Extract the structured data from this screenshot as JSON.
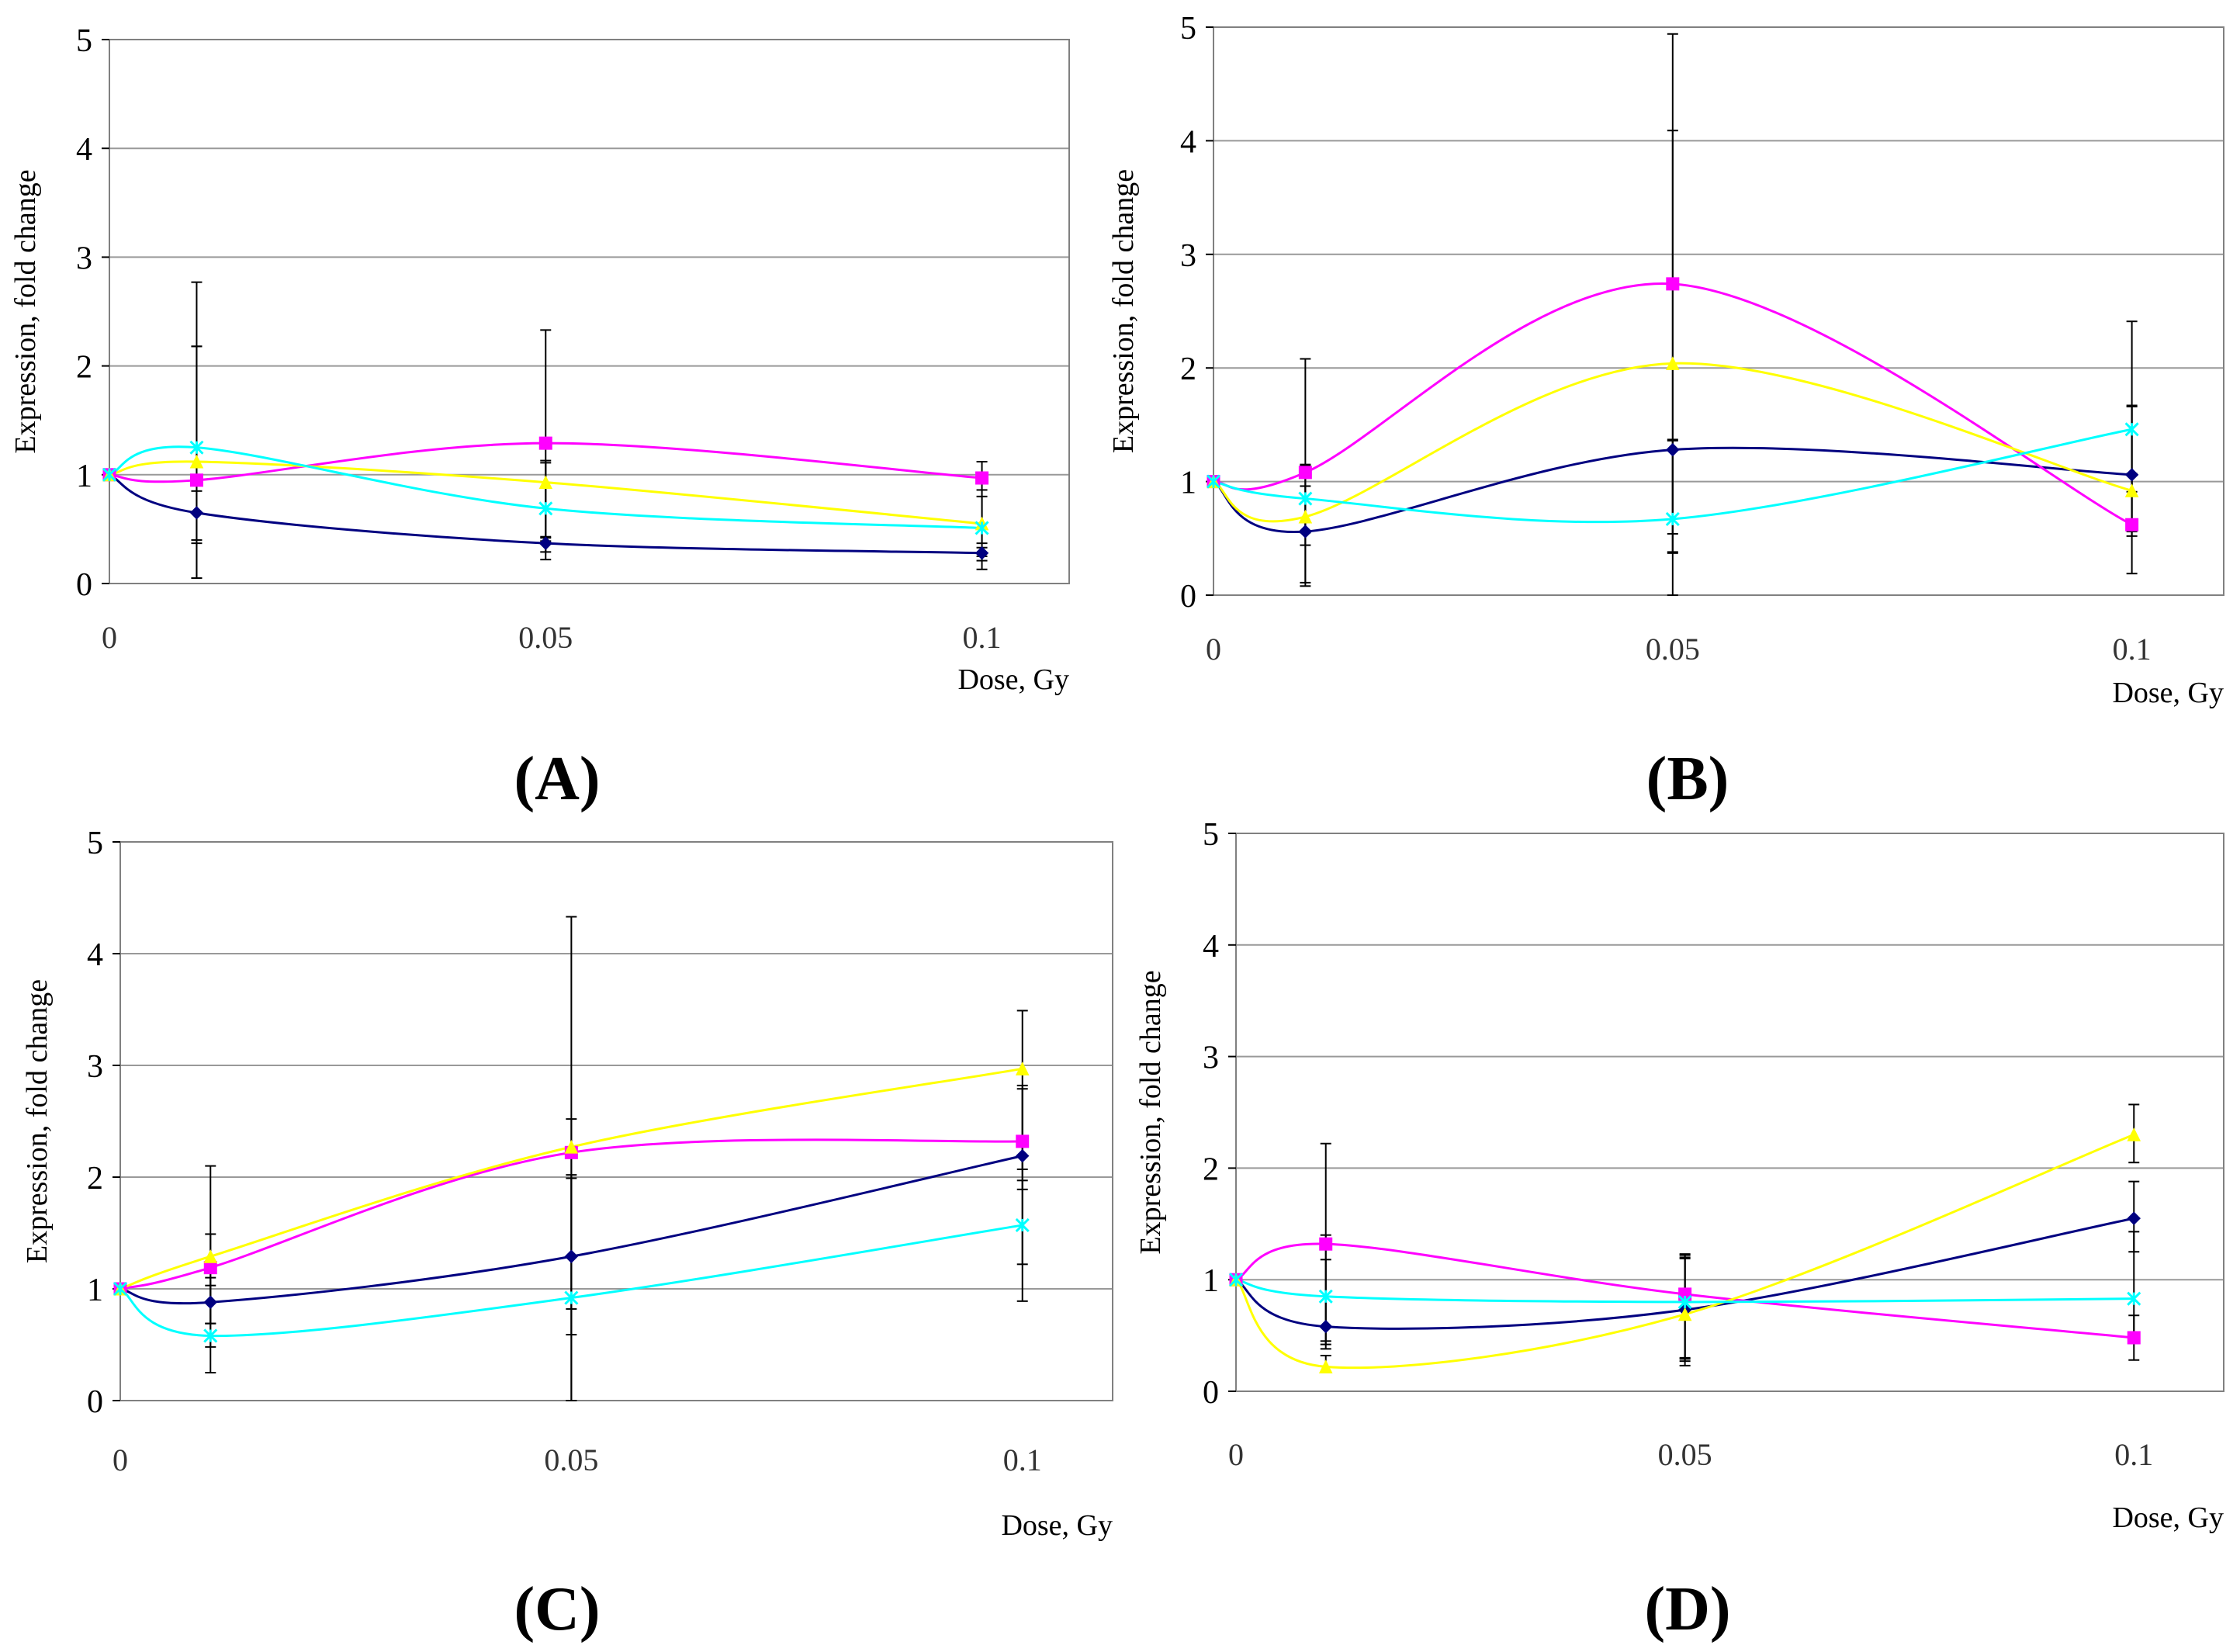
{
  "colors": {
    "navy": "#000080",
    "magenta": "#ff00ff",
    "yellow": "#ffff00",
    "cyan": "#00ffff",
    "grid": "#999999",
    "frame": "#808080",
    "error": "#000000"
  },
  "chart_data": [
    {
      "panel": "(A)",
      "type": "line",
      "x": [
        0,
        0.01,
        0.05,
        0.1
      ],
      "x_tick_labels": [
        "0",
        "0.05",
        "0.1"
      ],
      "x_tick_values": [
        0,
        0.05,
        0.1
      ],
      "xlabel": "Dose, Gy",
      "ylabel": "Expression, fold change",
      "y_tick_labels": [
        "0",
        "1",
        "2",
        "3",
        "4",
        "5"
      ],
      "xlim": [
        0,
        0.11
      ],
      "ylim": [
        0,
        5
      ],
      "grid": true,
      "series": [
        {
          "color": "navy",
          "marker": "diamond",
          "values": [
            1,
            0.65,
            0.37,
            0.28
          ],
          "err_low": [
            0,
            0.6,
            0.15,
            0.15
          ],
          "err_high": [
            0,
            0.2,
            0.05,
            0.05
          ]
        },
        {
          "color": "magenta",
          "marker": "square",
          "values": [
            1,
            0.95,
            1.29,
            0.97
          ],
          "err_low": [
            0,
            0.9,
            0.9,
            0.6
          ],
          "err_high": [
            0,
            1.82,
            1.04,
            0.15
          ]
        },
        {
          "color": "yellow",
          "marker": "triangle",
          "values": [
            1,
            1.12,
            0.93,
            0.55
          ],
          "err_low": [
            0,
            0.75,
            0.5,
            0.3
          ],
          "err_high": [
            0,
            1.06,
            0.2,
            0.25
          ]
        },
        {
          "color": "cyan",
          "marker": "star",
          "values": [
            1,
            1.25,
            0.69,
            0.51
          ],
          "err_low": [
            0,
            0.85,
            0.4,
            0.3
          ],
          "err_high": [
            0,
            0.93,
            0.42,
            0.35
          ]
        }
      ]
    },
    {
      "panel": "(B)",
      "type": "line",
      "x": [
        0,
        0.01,
        0.05,
        0.1
      ],
      "x_tick_labels": [
        "0",
        "0.05",
        "0.1"
      ],
      "x_tick_values": [
        0,
        0.05,
        0.1
      ],
      "xlabel": "Dose, Gy",
      "ylabel": "Expression, fold change",
      "y_tick_labels": [
        "0",
        "1",
        "2",
        "3",
        "4",
        "5"
      ],
      "xlim": [
        0,
        0.11
      ],
      "ylim": [
        0,
        5
      ],
      "grid": true,
      "series": [
        {
          "color": "navy",
          "marker": "diamond",
          "values": [
            1,
            0.56,
            1.28,
            1.06
          ],
          "err_low": [
            0,
            0.45,
            0.9,
            0.5
          ],
          "err_high": [
            0,
            0.4,
            0.08,
            0.6
          ]
        },
        {
          "color": "magenta",
          "marker": "square",
          "values": [
            1,
            1.08,
            2.74,
            0.62
          ],
          "err_low": [
            0,
            1.0,
            2.74,
            0.43
          ],
          "err_high": [
            0,
            1.0,
            2.2,
            0.45
          ]
        },
        {
          "color": "yellow",
          "marker": "triangle",
          "values": [
            1,
            0.69,
            2.04,
            0.92
          ],
          "err_low": [
            0,
            0.25,
            1.5,
            0.4
          ],
          "err_high": [
            0,
            0.45,
            2.05,
            0.75
          ]
        },
        {
          "color": "cyan",
          "marker": "star",
          "values": [
            1,
            0.85,
            0.67,
            1.46
          ],
          "err_low": [
            0,
            0.3,
            0.3,
            0.55
          ],
          "err_high": [
            0,
            0.3,
            0.7,
            0.95
          ]
        }
      ]
    },
    {
      "panel": "(C)",
      "type": "line",
      "x": [
        0,
        0.01,
        0.05,
        0.1
      ],
      "x_tick_labels": [
        "0",
        "0.05",
        "0.1"
      ],
      "x_tick_values": [
        0,
        0.05,
        0.1
      ],
      "xlabel": "Dose, Gy",
      "ylabel": "Expression, fold change",
      "y_tick_labels": [
        "0",
        "1",
        "2",
        "3",
        "4",
        "5"
      ],
      "xlim": [
        0,
        0.11
      ],
      "ylim": [
        0,
        5
      ],
      "grid": true,
      "series": [
        {
          "color": "navy",
          "marker": "diamond",
          "values": [
            1,
            0.88,
            1.29,
            2.19
          ],
          "err_low": [
            0,
            0.4,
            0.7,
            0.3
          ],
          "err_high": [
            0,
            0.22,
            0.7,
            0.6
          ]
        },
        {
          "color": "magenta",
          "marker": "square",
          "values": [
            1,
            1.19,
            2.22,
            2.32
          ],
          "err_low": [
            0,
            0.5,
            1.4,
            1.1
          ],
          "err_high": [
            0,
            0.3,
            0.3,
            0.5
          ]
        },
        {
          "color": "yellow",
          "marker": "triangle",
          "values": [
            1,
            1.29,
            2.27,
            2.97
          ],
          "err_low": [
            0,
            0.6,
            2.27,
            0.9
          ],
          "err_high": [
            0,
            0.81,
            2.06,
            0.52
          ]
        },
        {
          "color": "cyan",
          "marker": "star",
          "values": [
            1,
            0.58,
            0.92,
            1.57
          ],
          "err_low": [
            0,
            0.33,
            0.92,
            0.68
          ],
          "err_high": [
            0,
            0.45,
            1.1,
            0.4
          ]
        }
      ]
    },
    {
      "panel": "(D)",
      "type": "line",
      "x": [
        0,
        0.01,
        0.05,
        0.1
      ],
      "x_tick_labels": [
        "0",
        "0.05",
        "0.1"
      ],
      "x_tick_values": [
        0,
        0.05,
        0.1
      ],
      "xlabel": "Dose, Gy",
      "ylabel": "Expression, fold change",
      "y_tick_labels": [
        "0",
        "1",
        "2",
        "3",
        "4",
        "5"
      ],
      "xlim": [
        0,
        0.11
      ],
      "ylim": [
        0,
        5
      ],
      "grid": true,
      "series": [
        {
          "color": "navy",
          "marker": "diamond",
          "values": [
            1,
            0.58,
            0.73,
            1.55
          ],
          "err_low": [
            0,
            0.2,
            0.5,
            0.3
          ],
          "err_high": [
            0,
            0.6,
            0.5,
            0.33
          ]
        },
        {
          "color": "magenta",
          "marker": "square",
          "values": [
            1,
            1.32,
            0.87,
            0.48
          ],
          "err_low": [
            0,
            0.9,
            0.6,
            0.2
          ],
          "err_high": [
            0,
            0.9,
            0.35,
            0.2
          ]
        },
        {
          "color": "yellow",
          "marker": "triangle",
          "values": [
            1,
            0.22,
            0.69,
            2.3
          ],
          "err_low": [
            0,
            0.05,
            0.4,
            0.25
          ],
          "err_high": [
            0,
            0.1,
            0.5,
            0.27
          ]
        },
        {
          "color": "cyan",
          "marker": "star",
          "values": [
            1,
            0.85,
            0.8,
            0.83
          ],
          "err_low": [
            0,
            0.4,
            0.5,
            0.4
          ],
          "err_high": [
            0,
            0.55,
            0.4,
            0.6
          ]
        }
      ]
    }
  ]
}
